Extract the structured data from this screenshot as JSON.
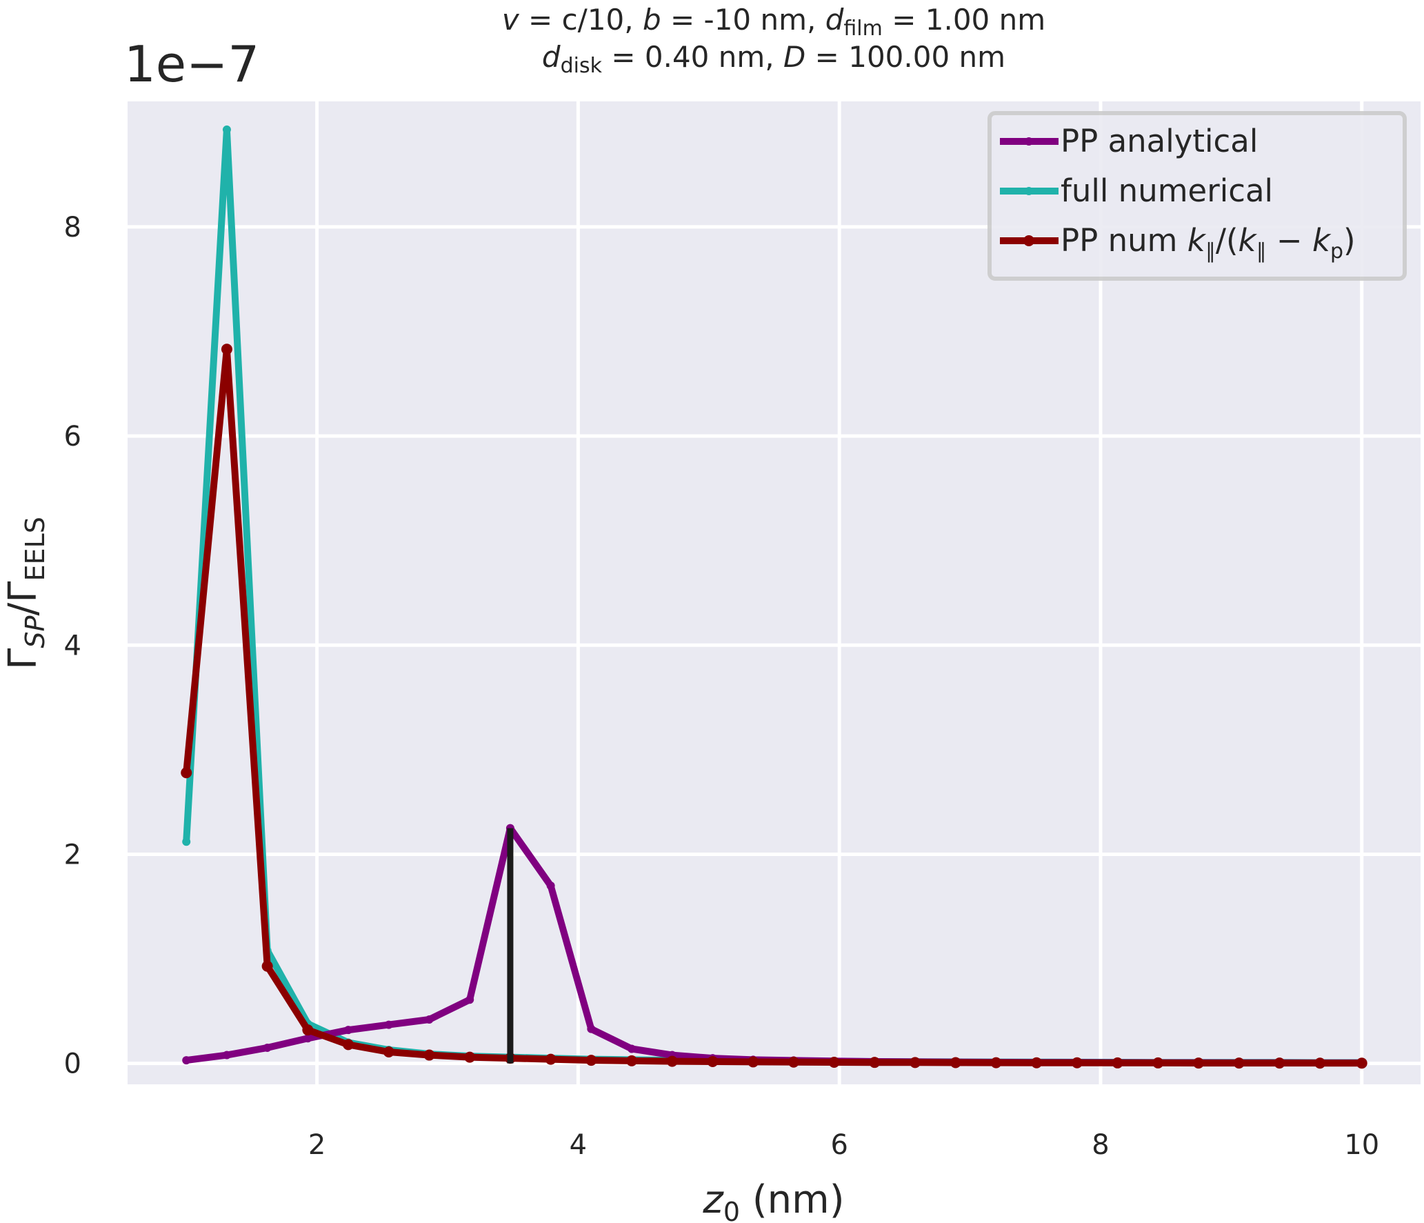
{
  "chart_data": {
    "type": "line",
    "title_line1": {
      "v": "v",
      "t1": " = c/10, ",
      "b": "b",
      "t2": " = -10 nm, ",
      "d": "d",
      "sub": "film",
      "t3": " = 1.00 nm"
    },
    "title_line2": {
      "d": "d",
      "sub": "disk",
      "t1": " = 0.40 nm, ",
      "D": "D",
      "t2": " = 100.00 nm"
    },
    "offset_text": "1e−7",
    "xlabel": {
      "var": "z",
      "sub": "0",
      "unit": " (nm)"
    },
    "ylabel": {
      "g1": "Γ",
      "sub1": "SP",
      "slash": "/Γ",
      "sub2": "EELS"
    },
    "xlim": [
      0.55,
      10.45
    ],
    "ylim": [
      -0.2,
      9.2
    ],
    "xticks": [
      2,
      4,
      6,
      8,
      10
    ],
    "yticks": [
      0,
      2,
      4,
      6,
      8
    ],
    "grid": true,
    "legend_position": "top-right",
    "x": [
      1.0,
      1.31,
      1.62,
      1.93,
      2.24,
      2.55,
      2.86,
      3.17,
      3.48,
      3.79,
      4.1,
      4.41,
      4.72,
      5.03,
      5.34,
      5.65,
      5.96,
      6.27,
      6.58,
      6.89,
      7.2,
      7.51,
      7.82,
      8.13,
      8.44,
      8.75,
      9.06,
      9.37,
      9.68,
      10.0
    ],
    "series": [
      {
        "name": "full numerical",
        "color": "#20b2aa",
        "width": 10,
        "marker_r": 6,
        "values": [
          2.12,
          8.93,
          1.08,
          0.38,
          0.2,
          0.13,
          0.09,
          0.07,
          0.06,
          0.05,
          0.04,
          0.035,
          0.03,
          0.027,
          0.024,
          0.022,
          0.02,
          0.018,
          0.016,
          0.015,
          0.014,
          0.013,
          0.012,
          0.011,
          0.01,
          0.01,
          0.009,
          0.009,
          0.008,
          0.008
        ]
      },
      {
        "name": "PP analytical",
        "color": "#800080",
        "width": 10,
        "marker_r": 6,
        "values": [
          0.03,
          0.08,
          0.15,
          0.24,
          0.32,
          0.37,
          0.42,
          0.61,
          2.25,
          1.7,
          0.33,
          0.14,
          0.08,
          0.05,
          0.035,
          0.028,
          0.022,
          0.018,
          0.015,
          0.013,
          0.011,
          0.01,
          0.009,
          0.008,
          0.007,
          0.007,
          0.006,
          0.006,
          0.005,
          0.005
        ]
      },
      {
        "name": "PP num",
        "legend_math": {
          "k": "k",
          "par": "∥",
          "open": "/(",
          "minus": " − ",
          "kp_sub": "p",
          "close": ")"
        },
        "color": "#8b0000",
        "width": 10,
        "marker_r": 8,
        "values": [
          2.78,
          6.83,
          0.93,
          0.32,
          0.18,
          0.11,
          0.08,
          0.06,
          0.05,
          0.04,
          0.03,
          0.025,
          0.02,
          0.018,
          0.015,
          0.013,
          0.011,
          0.01,
          0.009,
          0.008,
          0.007,
          0.006,
          0.006,
          0.005,
          0.005,
          0.004,
          0.004,
          0.004,
          0.003,
          0.003
        ]
      }
    ],
    "vertical_line": {
      "x": 3.48,
      "y0": 0,
      "y1": 2.25,
      "color": "#1a1a1a"
    }
  }
}
